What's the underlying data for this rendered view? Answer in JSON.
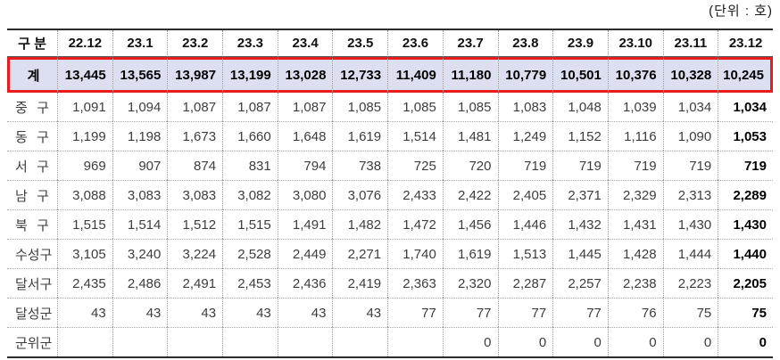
{
  "unit_label": "(단위 : 호)",
  "table": {
    "header": [
      "구 분",
      "22.12",
      "23.1",
      "23.2",
      "23.3",
      "23.4",
      "23.5",
      "23.6",
      "23.7",
      "23.8",
      "23.9",
      "23.10",
      "23.11",
      "23.12"
    ],
    "total_row": {
      "label": "계",
      "values": [
        "13,445",
        "13,565",
        "13,987",
        "13,199",
        "13,028",
        "12,733",
        "11,409",
        "11,180",
        "10,779",
        "10,501",
        "10,376",
        "10,328",
        "10,245"
      ]
    },
    "rows": [
      {
        "label": "중 구",
        "values": [
          "1,091",
          "1,094",
          "1,087",
          "1,087",
          "1,087",
          "1,085",
          "1,085",
          "1,085",
          "1,083",
          "1,048",
          "1,039",
          "1,034",
          "1,034"
        ]
      },
      {
        "label": "동 구",
        "values": [
          "1,199",
          "1,198",
          "1,673",
          "1,660",
          "1,648",
          "1,619",
          "1,514",
          "1,481",
          "1,249",
          "1,152",
          "1,116",
          "1,090",
          "1,053"
        ]
      },
      {
        "label": "서 구",
        "values": [
          "969",
          "907",
          "874",
          "831",
          "794",
          "738",
          "725",
          "720",
          "719",
          "719",
          "719",
          "719",
          "719"
        ]
      },
      {
        "label": "남 구",
        "values": [
          "3,088",
          "3,083",
          "3,083",
          "3,082",
          "3,080",
          "3,076",
          "2,433",
          "2,422",
          "2,405",
          "2,371",
          "2,329",
          "2,313",
          "2,289"
        ]
      },
      {
        "label": "북 구",
        "values": [
          "1,515",
          "1,514",
          "1,512",
          "1,515",
          "1,491",
          "1,482",
          "1,472",
          "1,456",
          "1,446",
          "1,432",
          "1,431",
          "1,430",
          "1,430"
        ]
      },
      {
        "label": "수성구",
        "values": [
          "3,105",
          "3,240",
          "3,224",
          "2,528",
          "2,449",
          "2,271",
          "1,740",
          "1,619",
          "1,513",
          "1,445",
          "1,428",
          "1,444",
          "1,440"
        ]
      },
      {
        "label": "달서구",
        "values": [
          "2,435",
          "2,486",
          "2,491",
          "2,453",
          "2,436",
          "2,419",
          "2,363",
          "2,320",
          "2,287",
          "2,257",
          "2,238",
          "2,223",
          "2,205"
        ]
      },
      {
        "label": "달성군",
        "values": [
          "43",
          "43",
          "43",
          "43",
          "43",
          "43",
          "77",
          "77",
          "77",
          "77",
          "76",
          "75",
          "75"
        ]
      },
      {
        "label": "군위군",
        "values": [
          "",
          "",
          "",
          "",
          "",
          "",
          "",
          "0",
          "0",
          "0",
          "0",
          "0",
          "0"
        ]
      }
    ],
    "colors": {
      "highlight_border": "#e81c1c",
      "total_row_bg": "#dcdff0"
    }
  }
}
